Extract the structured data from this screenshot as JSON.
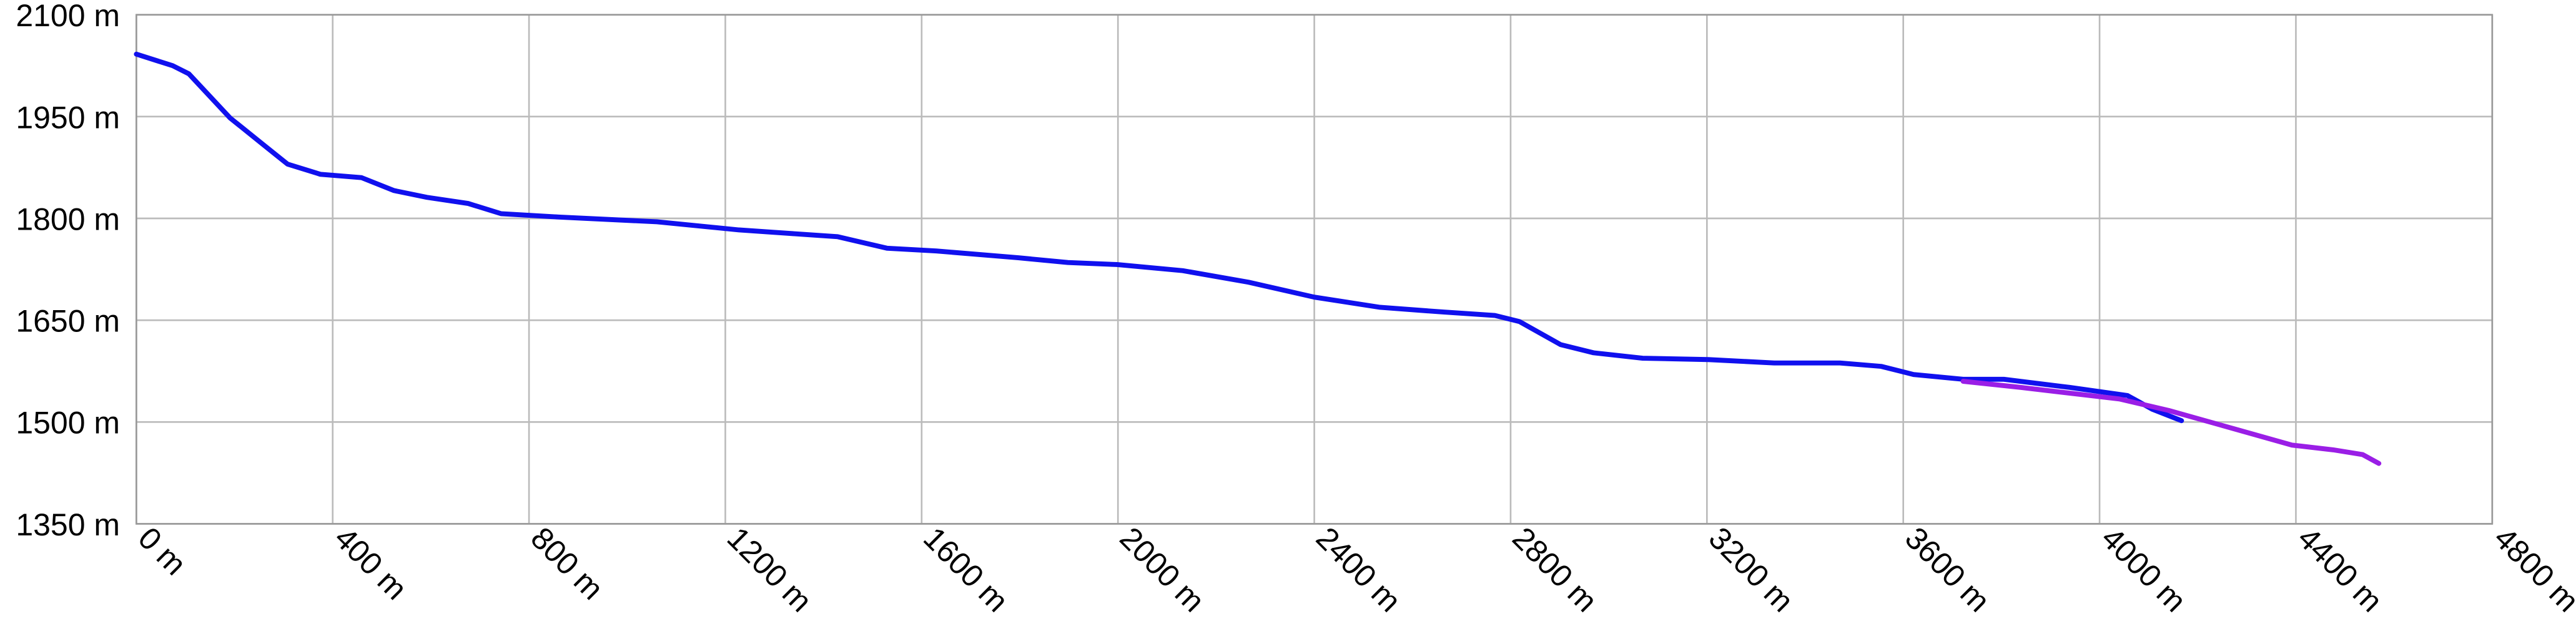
{
  "chart_data": {
    "type": "line",
    "x": [],
    "series": [
      {
        "name": null,
        "color": "#1010ee",
        "x": [
          0,
          74,
          107,
          191,
          258,
          308,
          375,
          459,
          525,
          592,
          676,
          743,
          860,
          1061,
          1228,
          1329,
          1429,
          1530,
          1630,
          1797,
          1898,
          1998,
          2132,
          2266,
          2400,
          2534,
          2664,
          2768,
          2818,
          2902,
          2969,
          3069,
          3203,
          3337,
          3471,
          3555,
          3621,
          3722,
          3805,
          3939,
          4057,
          4107,
          4167
        ],
        "values": [
          2042,
          2025,
          2013,
          1948,
          1909,
          1880,
          1865,
          1860,
          1841,
          1831,
          1822,
          1807,
          1802,
          1795,
          1783,
          1778,
          1773,
          1756,
          1752,
          1742,
          1735,
          1732,
          1723,
          1706,
          1684,
          1669,
          1662,
          1657,
          1648,
          1614,
          1602,
          1594,
          1592,
          1587,
          1587,
          1582,
          1570,
          1563,
          1563,
          1551,
          1539,
          1519,
          1502
        ]
      },
      {
        "name": null,
        "color": "#9a1ee6",
        "x": [
          3722,
          3839,
          4040,
          4141,
          4274,
          4392,
          4476,
          4536,
          4569
        ],
        "values": [
          1560,
          1551,
          1534,
          1517,
          1490,
          1466,
          1459,
          1452,
          1439
        ]
      }
    ],
    "xlim": [
      0,
      4800
    ],
    "xticks": [
      {
        "value": 0,
        "label": "0 m"
      },
      {
        "value": 400,
        "label": "400 m"
      },
      {
        "value": 800,
        "label": "800 m"
      },
      {
        "value": 1200,
        "label": "1200 m"
      },
      {
        "value": 1600,
        "label": "1600 m"
      },
      {
        "value": 2000,
        "label": "2000 m"
      },
      {
        "value": 2400,
        "label": "2400 m"
      },
      {
        "value": 2800,
        "label": "2800 m"
      },
      {
        "value": 3200,
        "label": "3200 m"
      },
      {
        "value": 3600,
        "label": "3600 m"
      },
      {
        "value": 4000,
        "label": "4000 m"
      },
      {
        "value": 4400,
        "label": "4400 m"
      },
      {
        "value": 4800,
        "label": "4800 m"
      }
    ],
    "ylim": [
      1350,
      2100
    ],
    "yticks": [
      {
        "value": 1350,
        "label": "1350 m"
      },
      {
        "value": 1500,
        "label": "1500 m"
      },
      {
        "value": 1650,
        "label": "1650 m"
      },
      {
        "value": 1800,
        "label": "1800 m"
      },
      {
        "value": 1950,
        "label": "1950 m"
      },
      {
        "value": 2100,
        "label": "2100 m"
      }
    ],
    "grid": true
  }
}
